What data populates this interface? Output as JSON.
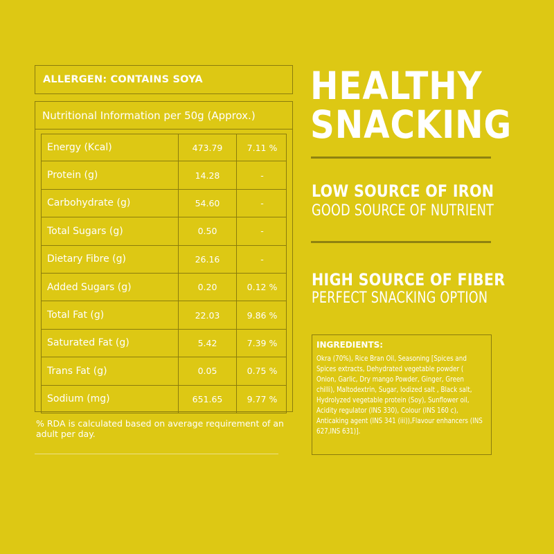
{
  "allergen": "ALLERGEN: CONTAINS SOYA",
  "nutrition": {
    "title": "Nutritional Information per 50g (Approx.)",
    "rows": [
      {
        "label": "Energy (Kcal)",
        "value": "473.79",
        "rda": "7.11 %"
      },
      {
        "label": "Protein (g)",
        "value": "14.28",
        "rda": "-"
      },
      {
        "label": "Carbohydrate (g)",
        "value": "54.60",
        "rda": "-"
      },
      {
        "label": "Total Sugars (g)",
        "value": "0.50",
        "rda": "-"
      },
      {
        "label": "Dietary Fibre (g)",
        "value": "26.16",
        "rda": "-"
      },
      {
        "label": "Added Sugars (g)",
        "value": "0.20",
        "rda": "0.12 %"
      },
      {
        "label": "Total Fat (g)",
        "value": "22.03",
        "rda": "9.86 %"
      },
      {
        "label": "Saturated Fat (g)",
        "value": "5.42",
        "rda": "7.39 %"
      },
      {
        "label": "Trans Fat (g)",
        "value": "0.05",
        "rda": "0.75 %"
      },
      {
        "label": "Sodium (mg)",
        "value": "651.65",
        "rda": "9.77 %"
      }
    ],
    "note": "% RDA is calculated based on average requirement of an adult per day."
  },
  "headline": {
    "line1": "HEALTHY",
    "line2": "SNACKING"
  },
  "claims": [
    {
      "heading": "LOW SOURCE OF IRON",
      "sub": "GOOD SOURCE OF NUTRIENT"
    },
    {
      "heading": "HIGH SOURCE OF FIBER",
      "sub": "PERFECT SNACKING OPTION"
    }
  ],
  "ingredients": {
    "title": "INGREDIENTS:",
    "text": "Okra (70%), Rice Bran Oil, Seasoning [Spices and Spices extracts, Dehydrated vegetable powder ( Onion, Garlic, Dry mango Powder, Ginger, Green chilli), Maltodextrin, Sugar, Iodized salt , Black salt, Hydrolyzed vegetable protein (Soy), Sunflower oil, Acidity regulator (INS 330), Colour (INS 160 c), Anticaking agent (INS 341 (iii)),Flavour enhancers (INS 627,INS 631)]."
  },
  "colors": {
    "background": "#ddc814",
    "text": "#ffffff",
    "rule": "#8a7c0c"
  }
}
